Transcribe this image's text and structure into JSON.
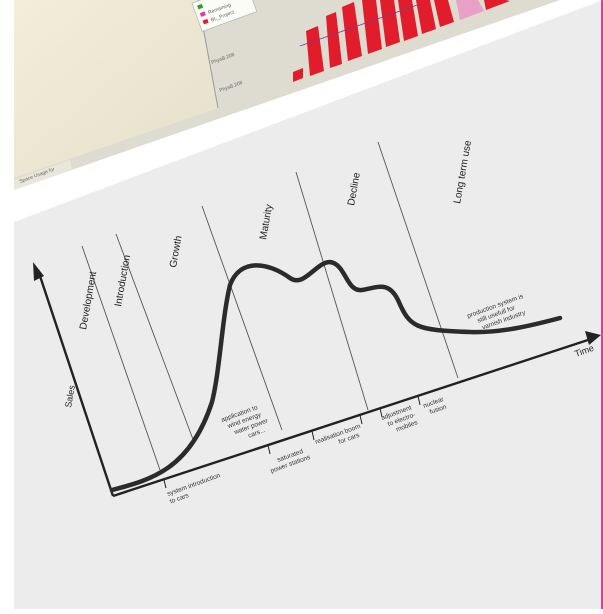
{
  "phases": [
    {
      "label": "Development"
    },
    {
      "label": "Introduction"
    },
    {
      "label": "Growth"
    },
    {
      "label": "Maturity"
    },
    {
      "label": "Decline"
    },
    {
      "label": "Long term use"
    }
  ],
  "axes": {
    "y": "Sales",
    "x": "Time"
  },
  "annotations": [
    {
      "lines": [
        "system introduction",
        "to cars"
      ]
    },
    {
      "lines": [
        "application to",
        "wind energy",
        "water power",
        "cars..."
      ]
    },
    {
      "lines": [
        "saturated",
        "power stations"
      ]
    },
    {
      "lines": [
        "realisation boom",
        "for cars"
      ]
    },
    {
      "lines": [
        "adjustment",
        "to electro-",
        "mobiles"
      ]
    },
    {
      "lines": [
        "nuclear",
        "fusion"
      ]
    },
    {
      "lines": [
        "production system is",
        "still usefull for",
        "varnish industry"
      ]
    }
  ],
  "background_window": {
    "legend_items": [
      {
        "label": "",
        "color": "#2aa02a"
      },
      {
        "label": "Remaining",
        "color": "#d43fa6"
      },
      {
        "label": "BL_Project",
        "color": "#e11d2c"
      }
    ],
    "side_labels": [
      "PhysB.208",
      "PhysB.208"
    ],
    "status_text": "Space Usage for",
    "bar_color": "#e11d2c"
  }
}
